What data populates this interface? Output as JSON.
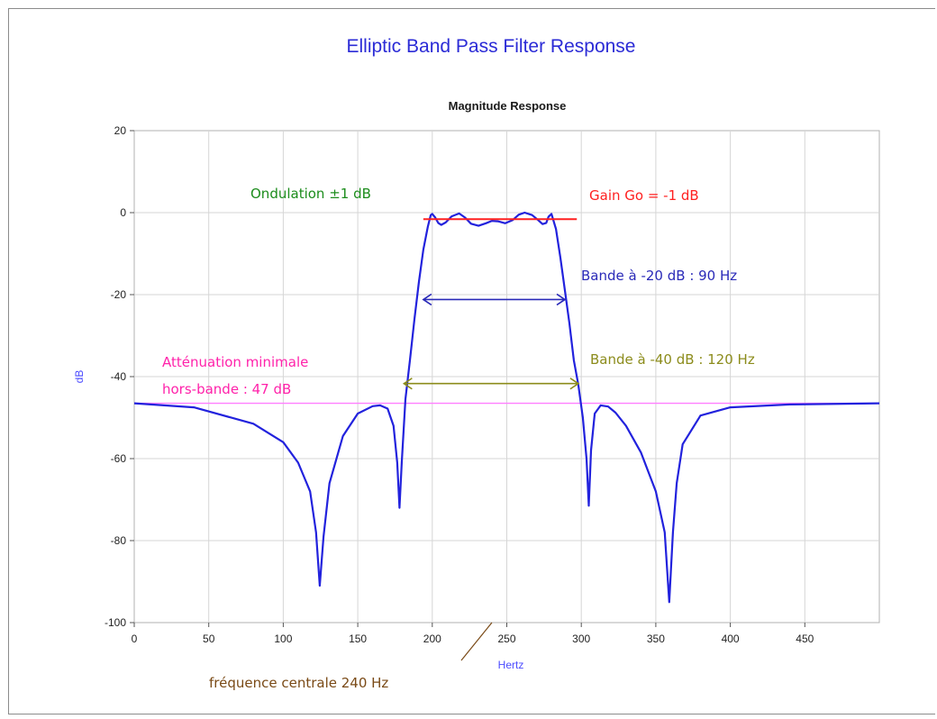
{
  "chart_data": {
    "type": "line",
    "title": "Elliptic Band Pass Filter Response",
    "subtitle": "Magnitude Response",
    "xlabel": "Hertz",
    "ylabel": "dB",
    "xlim": [
      0,
      500
    ],
    "ylim": [
      -100,
      20
    ],
    "xticks": [
      0,
      50,
      100,
      150,
      200,
      250,
      300,
      350,
      400,
      450
    ],
    "yticks": [
      20,
      0,
      -20,
      -40,
      -60,
      -80,
      -100
    ],
    "grid": true,
    "colors": {
      "series": "#2222dd",
      "gain_line": "#ff2020",
      "stopband_line": "#ff7fff",
      "band20": "#2a2ab8",
      "band40": "#8c8c1c",
      "ripple_text": "#1c8c1c",
      "stopband_text": "#ff22aa",
      "center_text": "#7a4a16",
      "title": "#2b2bd6"
    },
    "series": [
      {
        "x": [
          0,
          40,
          80,
          100,
          110,
          118,
          122,
          124.5,
          127,
          131,
          140,
          150,
          160,
          165,
          170,
          174,
          176.5,
          178,
          179.5,
          182,
          185,
          188,
          191,
          194,
          197,
          199,
          200,
          202,
          204,
          206,
          209,
          213,
          218,
          222,
          226,
          231,
          236,
          240,
          244,
          249,
          254,
          258,
          262,
          267,
          271,
          274,
          276.5,
          278,
          280,
          283,
          286,
          289,
          292,
          295,
          298,
          301,
          303.5,
          305,
          306.5,
          309,
          313,
          318,
          323,
          330,
          340,
          350,
          356,
          359,
          361.5,
          364,
          368,
          380,
          400,
          440,
          500
        ],
        "y": [
          -46.5,
          -47.5,
          -51.5,
          -56,
          -61,
          -68,
          -78,
          -91,
          -79,
          -66,
          -54.5,
          -49,
          -47.2,
          -47,
          -47.8,
          -52,
          -61,
          -72,
          -61,
          -45.5,
          -36,
          -26,
          -17,
          -9,
          -3.5,
          -0.6,
          -0.3,
          -1.2,
          -2.5,
          -3,
          -2.4,
          -0.9,
          -0.2,
          -1.2,
          -2.7,
          -3.2,
          -2.6,
          -2,
          -2.1,
          -2.6,
          -1.8,
          -0.5,
          0,
          -0.6,
          -1.8,
          -2.8,
          -2.5,
          -1,
          -0.3,
          -4,
          -11,
          -19,
          -27,
          -36,
          -42,
          -50,
          -60,
          -71.5,
          -58,
          -49,
          -47,
          -47.3,
          -48.8,
          -52,
          -58.5,
          -68,
          -78,
          -95,
          -78,
          -66,
          -56.5,
          -49.5,
          -47.5,
          -46.8,
          -46.5
        ]
      }
    ],
    "gain_line": {
      "x": [
        194,
        297
      ],
      "y": -1.6
    },
    "stopband_line": {
      "y": -46.5
    },
    "band20": {
      "x": [
        194,
        289
      ],
      "y": -21.2
    },
    "band40": {
      "x": [
        181,
        298
      ],
      "y": -41.7
    },
    "center_freq": 240,
    "annotations": {
      "ripple": "Ondulation ±1 dB",
      "gain": "Gain Go = -1 dB",
      "band20": "Bande à -20 dB : 90 Hz",
      "band40": "Bande à -40 dB : 120 Hz",
      "stopband_1": "Atténuation minimale",
      "stopband_2": "hors-bande : 47 dB",
      "center": "fréquence centrale 240 Hz"
    }
  }
}
